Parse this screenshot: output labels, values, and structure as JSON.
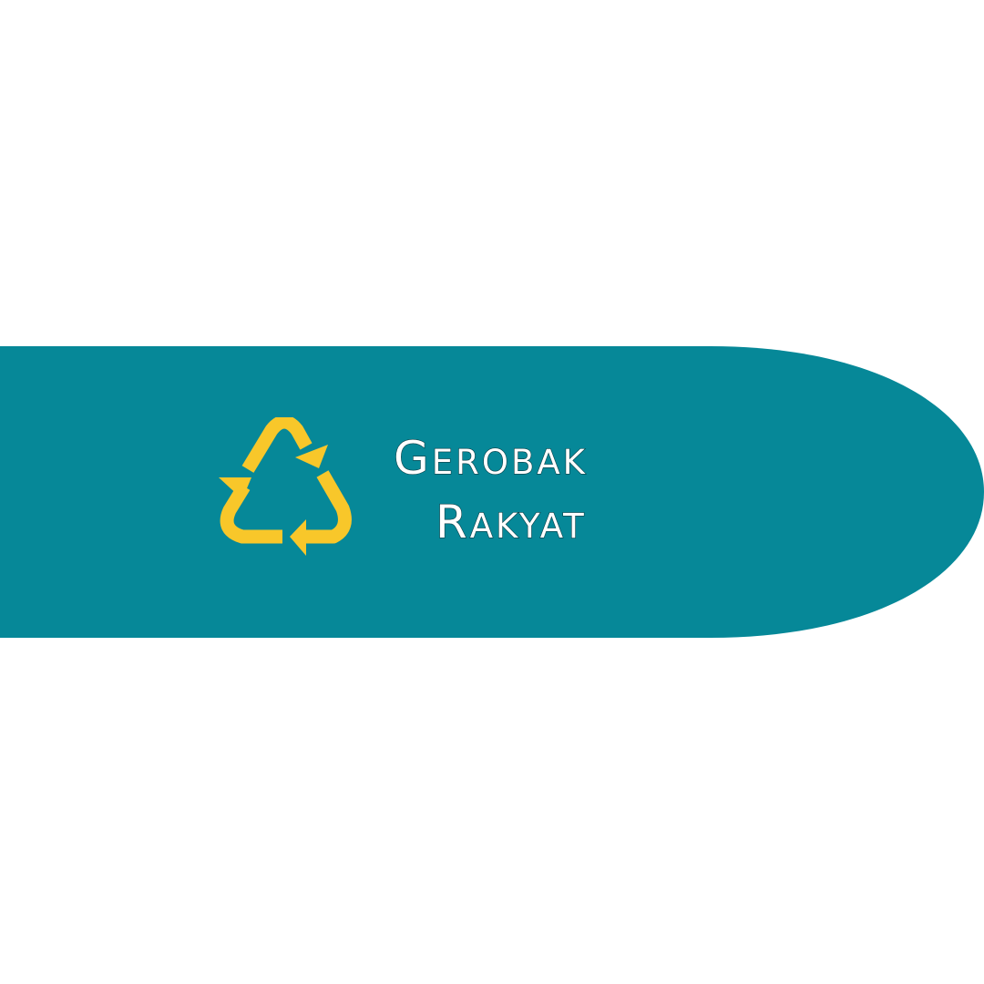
{
  "brand": {
    "line1_first": "G",
    "line1_rest": "erobak",
    "line2_first": "R",
    "line2_rest": "akyat"
  },
  "icons": {
    "logo": "recycle-icon"
  },
  "colors": {
    "banner": "#068898",
    "icon": "#f8c72a",
    "text": "#ffffff",
    "background": "#ffffff"
  }
}
